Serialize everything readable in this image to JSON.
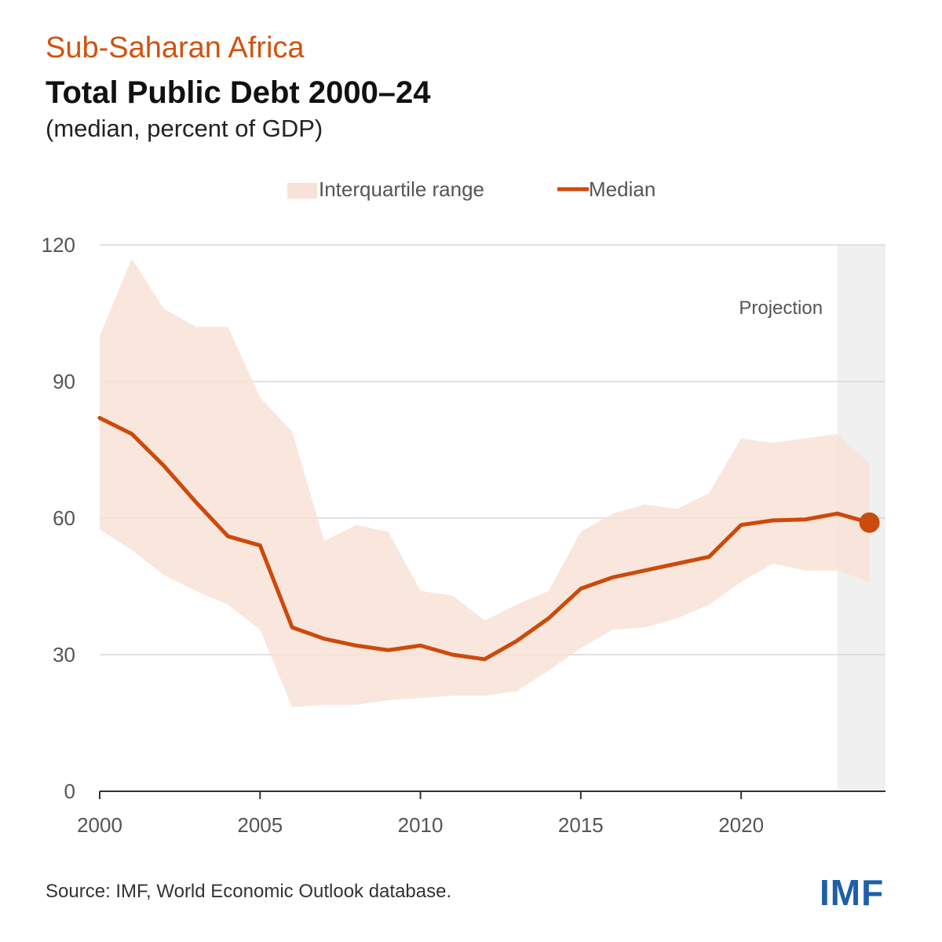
{
  "header": {
    "region": "Sub-Saharan Africa",
    "title": "Total Public Debt 2000–24",
    "subtitle": "(median, percent of GDP)"
  },
  "footer": {
    "source": "Source: IMF, World Economic Outlook database.",
    "logo": "IMF"
  },
  "colors": {
    "median": "#cc4a0a",
    "band": "#f8e2d7",
    "projection": "#f0f0f0",
    "grid": "#d7d7d7",
    "axis": "#333333",
    "tick_text": "#555555"
  },
  "chart_data": {
    "type": "line",
    "legend": {
      "placement": "top-center",
      "items": [
        {
          "label": "Interquartile range",
          "kind": "band"
        },
        {
          "label": "Median",
          "kind": "line"
        }
      ]
    },
    "x": [
      2000,
      2001,
      2002,
      2003,
      2004,
      2005,
      2006,
      2007,
      2008,
      2009,
      2010,
      2011,
      2012,
      2013,
      2014,
      2015,
      2016,
      2017,
      2018,
      2019,
      2020,
      2021,
      2022,
      2023,
      2024
    ],
    "series": [
      {
        "name": "Median",
        "values": [
          82,
          78.5,
          71.5,
          63.5,
          56,
          54,
          36,
          33.5,
          32,
          31,
          32,
          30,
          29,
          33,
          38,
          44.5,
          47,
          48.5,
          50,
          51.5,
          58.5,
          59.5,
          59.7,
          61,
          59
        ]
      },
      {
        "name": "Interquartile range",
        "upper": [
          100,
          117,
          106,
          102,
          102,
          86.5,
          79,
          55,
          58.5,
          57,
          44,
          43,
          37.5,
          41,
          44,
          57,
          61,
          63,
          62,
          65.5,
          77.5,
          76.5,
          77.5,
          78.5,
          72
        ],
        "lower": [
          57.5,
          53,
          47.5,
          44,
          41,
          35.5,
          18.5,
          19,
          19,
          20,
          20.5,
          21,
          21,
          22,
          26.5,
          31.5,
          35.5,
          36,
          38,
          41,
          46,
          50,
          48.5,
          48.5,
          46
        ]
      }
    ],
    "xlim": [
      2000,
      2024.5
    ],
    "ylim": [
      0,
      120
    ],
    "x_ticks": [
      2000,
      2005,
      2010,
      2015,
      2020
    ],
    "y_ticks": [
      0,
      30,
      60,
      90,
      120
    ],
    "grid": true,
    "projection": {
      "start": 2023,
      "end": 2024.5,
      "label": "Projection"
    },
    "highlight_last_point": true
  }
}
